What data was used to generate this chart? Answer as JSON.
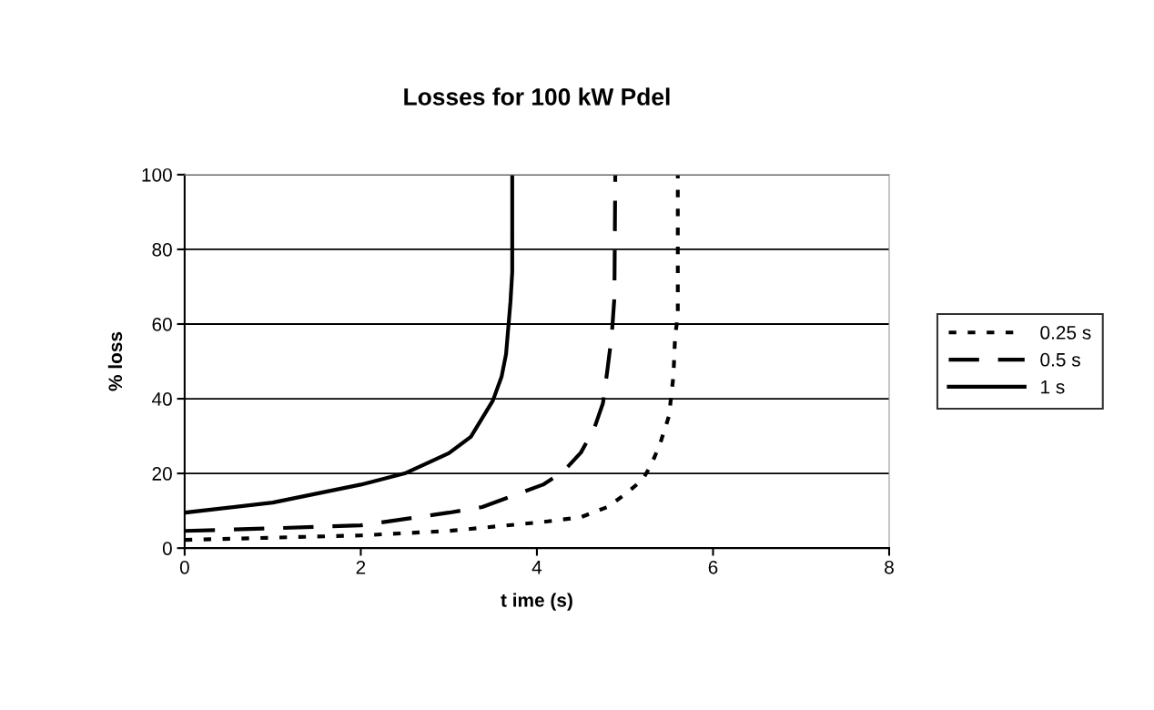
{
  "chart_data": {
    "type": "line",
    "title": "Losses for 100 kW Pdel",
    "xlabel": "t ime (s)",
    "ylabel": "% loss",
    "xlim": [
      0,
      8
    ],
    "xticks": [
      0,
      2,
      4,
      6,
      8
    ],
    "ylim": [
      0,
      100
    ],
    "yticks": [
      0,
      20,
      40,
      60,
      80,
      100
    ],
    "grid": "y",
    "legend": "right",
    "marker": "none",
    "series": [
      {
        "name": "0.25 s",
        "color": "#000000",
        "line_style": "dotted",
        "x": [
          0,
          1,
          2,
          3,
          4.07,
          4.5,
          4.8,
          5.0,
          5.2,
          5.3,
          5.4,
          5.5,
          5.55,
          5.57,
          5.6,
          5.6
        ],
        "values": [
          2.2,
          2.8,
          3.4,
          4.6,
          7,
          8.3,
          11,
          14.4,
          18.3,
          22.4,
          28,
          35.4,
          46,
          57,
          62,
          100
        ]
      },
      {
        "name": "0.5 s",
        "color": "#000000",
        "line_style": "dashed",
        "x": [
          0,
          1,
          2,
          3,
          3.38,
          4.07,
          4.3,
          4.5,
          4.65,
          4.75,
          4.8,
          4.85,
          4.88,
          4.89
        ],
        "values": [
          4.6,
          5.3,
          6.1,
          9.5,
          11,
          17,
          20.5,
          25.6,
          32,
          38.8,
          47.6,
          57,
          67,
          100
        ]
      },
      {
        "name": "1 s",
        "color": "#000000",
        "line_style": "solid",
        "x": [
          0,
          1,
          2,
          2.5,
          3,
          3.25,
          3.5,
          3.6,
          3.65,
          3.7,
          3.72,
          3.72
        ],
        "values": [
          9.5,
          12.2,
          17,
          20,
          25.4,
          29.8,
          39.5,
          46,
          52,
          66,
          74,
          100
        ]
      }
    ]
  }
}
